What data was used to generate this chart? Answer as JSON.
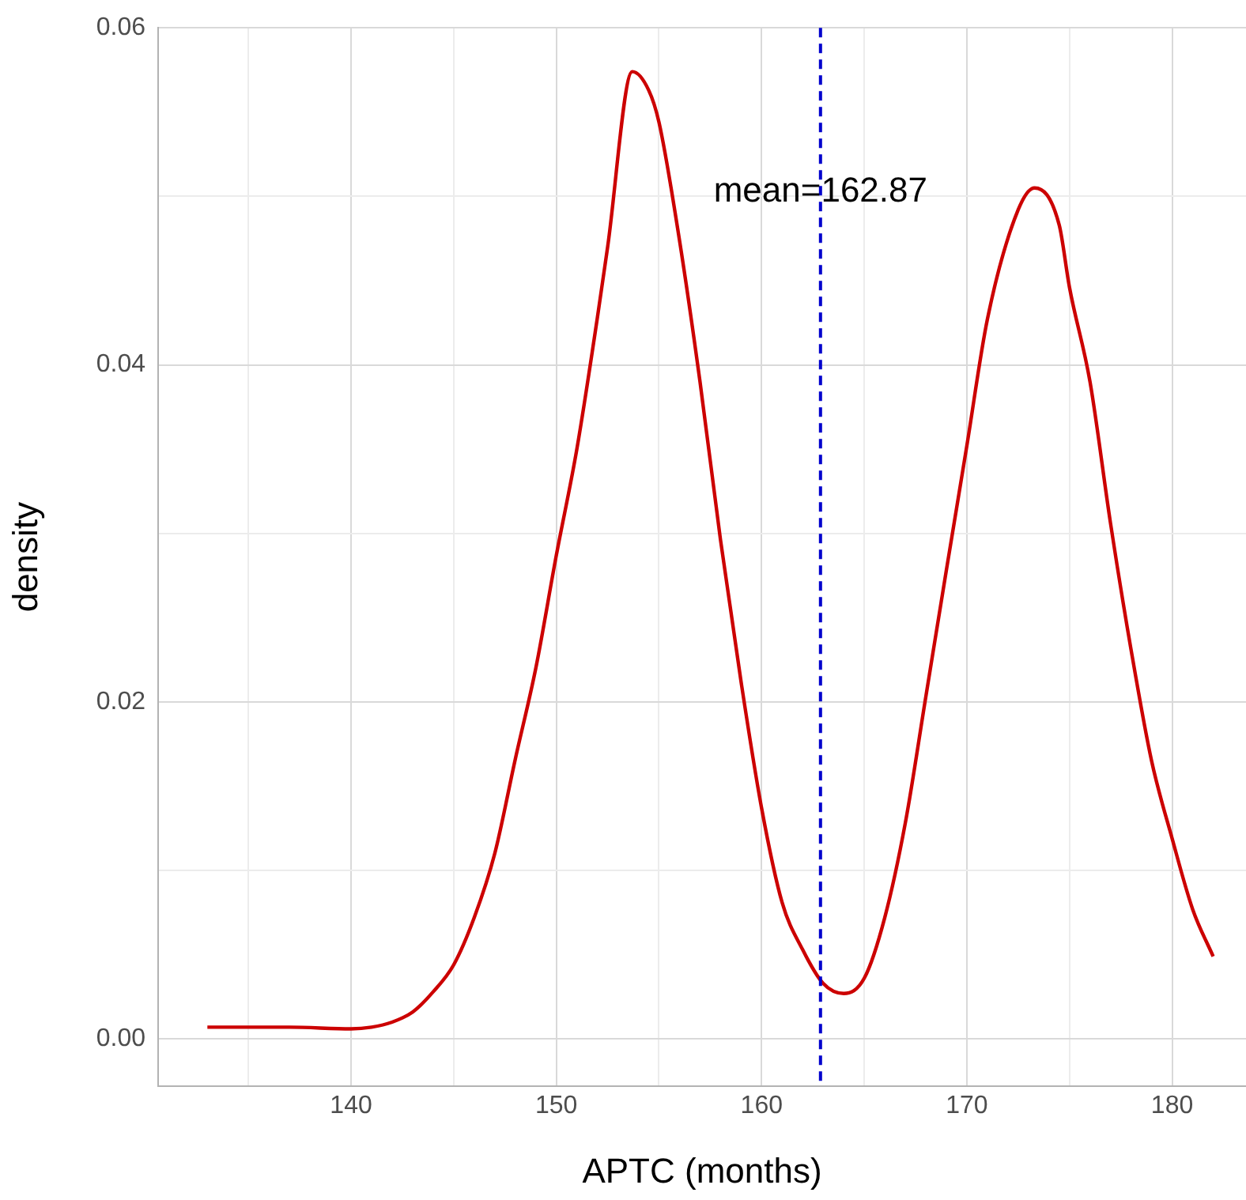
{
  "chart_data": {
    "type": "line",
    "xlabel": "APTC (months)",
    "ylabel": "density",
    "series": [
      {
        "color": "#cc0000",
        "x": [
          133,
          135,
          137,
          140,
          141,
          142,
          143,
          144,
          145,
          146,
          147,
          148,
          149,
          150,
          151,
          152,
          152.5,
          153.7,
          154.5,
          155,
          156,
          157,
          158,
          159,
          160,
          161,
          162,
          163,
          164,
          165,
          166,
          167,
          168,
          169,
          170,
          171,
          172.5,
          173.3,
          174.5,
          175,
          176,
          177,
          178,
          179,
          180,
          181,
          182
        ],
        "values": [
          0.0007,
          0.0007,
          0.0007,
          0.0006,
          0.0007,
          0.001,
          0.0016,
          0.0028,
          0.0044,
          0.0072,
          0.011,
          0.0166,
          0.022,
          0.0287,
          0.035,
          0.0428,
          0.047,
          0.0574,
          0.0563,
          0.0544,
          0.0474,
          0.039,
          0.0296,
          0.0212,
          0.0137,
          0.0081,
          0.0053,
          0.0033,
          0.0027,
          0.0036,
          0.0072,
          0.0128,
          0.0203,
          0.0278,
          0.0352,
          0.0427,
          0.0492,
          0.0505,
          0.0483,
          0.0446,
          0.039,
          0.0306,
          0.0231,
          0.0165,
          0.0119,
          0.0077,
          0.0049
        ]
      }
    ],
    "xlim": [
      130.6,
      183.6
    ],
    "ylim": [
      -0.0028,
      0.06
    ],
    "xticks": [
      {
        "value": 135,
        "label": null
      },
      140,
      {
        "value": 145,
        "label": null
      },
      150,
      {
        "value": 155,
        "label": null
      },
      160,
      {
        "value": 165,
        "label": null
      },
      170,
      {
        "value": 175,
        "label": null
      },
      180
    ],
    "yticks": [
      {
        "value": 0,
        "label": "0.00"
      },
      {
        "value": 0.01,
        "label": null
      },
      {
        "value": 0.02,
        "label": "0.02"
      },
      {
        "value": 0.03,
        "label": null
      },
      {
        "value": 0.04,
        "label": "0.04"
      },
      {
        "value": 0.05,
        "label": null
      },
      {
        "value": 0.06,
        "label": "0.06"
      }
    ],
    "grid": true,
    "legend": false,
    "marker": "none",
    "line_style": "solid",
    "ref_lines": [
      {
        "axis": "x",
        "value": 162.87,
        "color": "#0000cc",
        "line_style": "dashed"
      }
    ],
    "annotations": [
      {
        "text": "mean=162.87",
        "x": 162.87,
        "y": 0.0497
      }
    ]
  }
}
